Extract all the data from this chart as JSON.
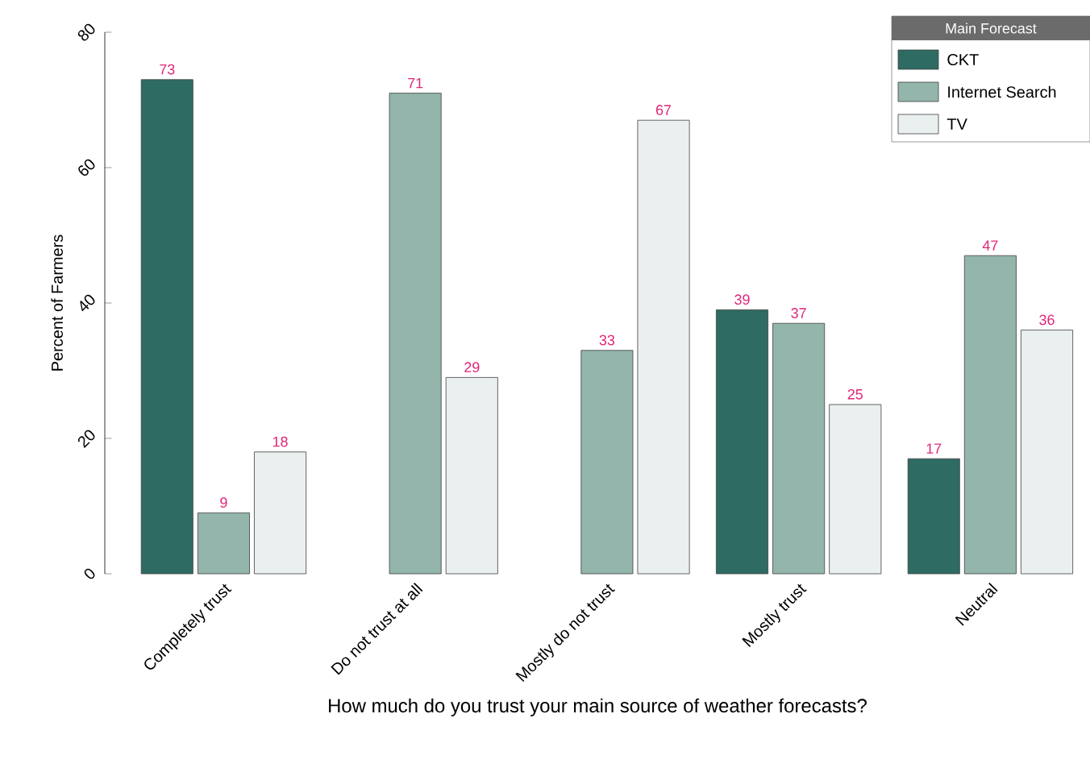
{
  "chart_data": {
    "type": "bar",
    "xlabel": "How much do you trust your main source of weather forecasts?",
    "ylabel": "Percent of Farmers",
    "legend_title": "Main Forecast",
    "legend": "top right",
    "data_labels": true,
    "categories": [
      "Completely trust",
      "Do not trust at all",
      "Mostly do not trust",
      "Mostly trust",
      "Neutral"
    ],
    "ylim": [
      0,
      80
    ],
    "yticks": [
      0,
      20,
      40,
      60,
      80
    ],
    "series": [
      {
        "name": "CKT",
        "color": "#2e6b62",
        "values": [
          73,
          null,
          null,
          39,
          17
        ]
      },
      {
        "name": "Internet Search",
        "color": "#93b5ab",
        "values": [
          9,
          71,
          33,
          37,
          47
        ]
      },
      {
        "name": "TV",
        "color": "#eaf0ef",
        "values": [
          18,
          29,
          67,
          25,
          36
        ]
      }
    ]
  }
}
